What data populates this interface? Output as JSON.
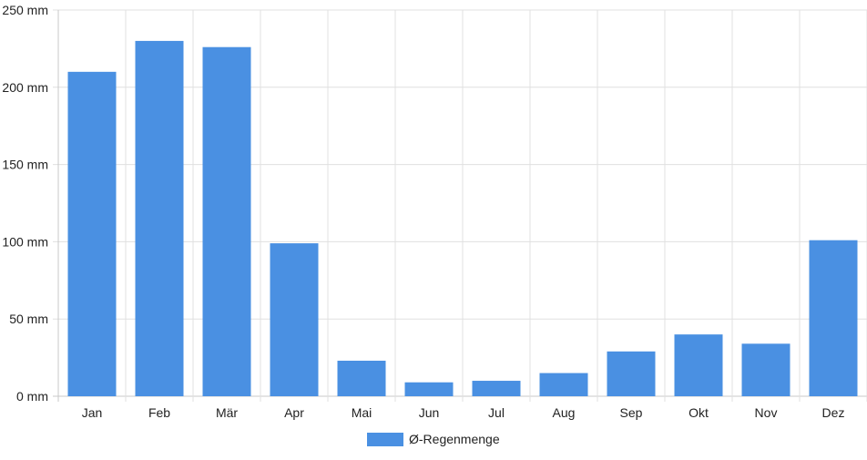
{
  "chart_data": {
    "type": "bar",
    "categories": [
      "Jan",
      "Feb",
      "Mär",
      "Apr",
      "Mai",
      "Jun",
      "Jul",
      "Aug",
      "Sep",
      "Okt",
      "Nov",
      "Dez"
    ],
    "series": [
      {
        "name": "Ø-Regenmenge",
        "values": [
          210,
          230,
          226,
          99,
          23,
          9,
          10,
          15,
          29,
          40,
          34,
          101
        ]
      }
    ],
    "y_unit": "mm",
    "ylim": [
      0,
      250
    ],
    "yticks": [
      0,
      50,
      100,
      150,
      200,
      250
    ],
    "grid": true,
    "legend_position": "bottom-center",
    "bar_color": "#4a90e2",
    "grid_color": "#e0e0e0"
  }
}
